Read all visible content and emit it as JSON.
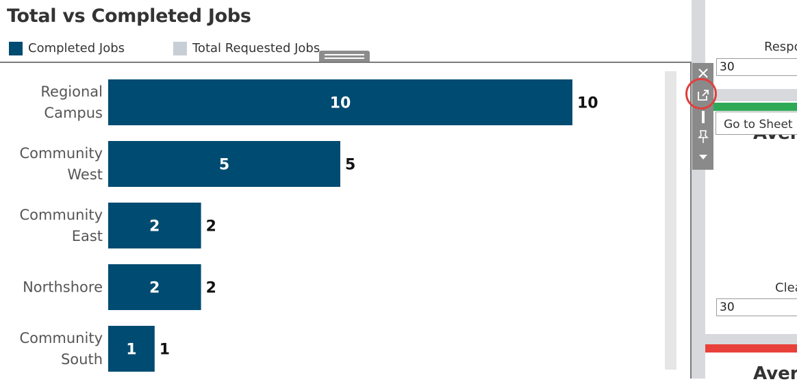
{
  "sheet": {
    "title": "Total vs Completed Jobs",
    "legend": [
      {
        "label": "Completed Jobs",
        "color": "#004b71"
      },
      {
        "label": "Total Requested Jobs",
        "color": "#c8ced6"
      }
    ]
  },
  "chart_data": {
    "type": "bar",
    "orientation": "horizontal",
    "categories": [
      [
        "Regional",
        "Campus"
      ],
      [
        "Community",
        "West"
      ],
      [
        "Community",
        "East"
      ],
      [
        "Northshore"
      ],
      [
        "Community",
        "South"
      ]
    ],
    "series": [
      {
        "name": "Completed Jobs",
        "values": [
          10,
          5,
          2,
          2,
          1
        ],
        "color": "#004b71"
      },
      {
        "name": "Total Requested Jobs",
        "values": [
          10,
          5,
          2,
          2,
          1
        ],
        "color": "#c8ced6"
      }
    ],
    "xlim": [
      0,
      10
    ],
    "grid": false,
    "legend": "top-left"
  },
  "toolbar": {
    "close_icon": "close-icon",
    "goto_icon": "external-link-icon",
    "pin_icon": "pin-icon",
    "menu_icon": "dropdown-arrow-icon",
    "tooltip": "Go to Sheet"
  },
  "right_panel": {
    "response_label": "Respo",
    "response_value": "30",
    "avg_text_1": "Aver",
    "clear_label": "Clea",
    "clear_value": "30",
    "avg_text_2": "Aver",
    "accent_green": "#2eaa57",
    "accent_red": "#e8413a"
  }
}
